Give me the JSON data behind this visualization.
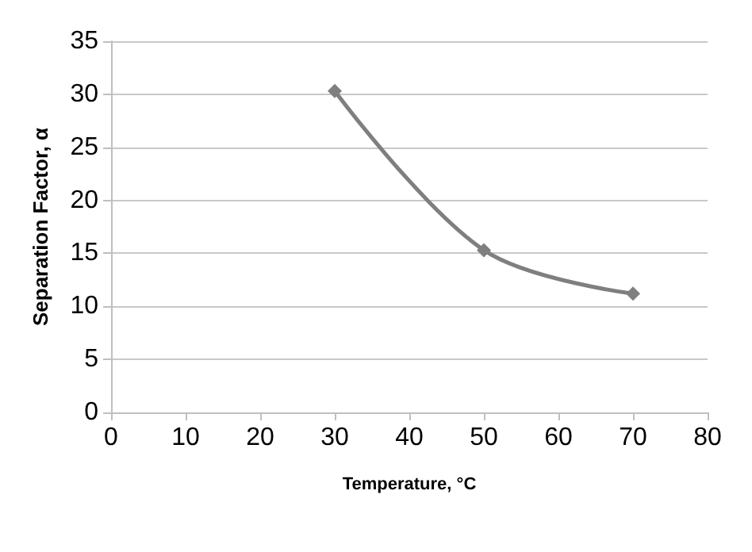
{
  "chart_data": {
    "type": "line",
    "xlabel": "Temperature, °C",
    "ylabel": "Separation Factor, α",
    "x": [
      30,
      50,
      70
    ],
    "series": [
      {
        "color": "#7f7f7f",
        "values": [
          30.3,
          15.3,
          11.2
        ]
      }
    ],
    "xlim": [
      0,
      80
    ],
    "xticks": [
      0,
      10,
      20,
      30,
      40,
      50,
      60,
      70,
      80
    ],
    "ylim": [
      0,
      35
    ],
    "yticks": [
      0,
      5,
      10,
      15,
      20,
      25,
      30,
      35
    ],
    "grid": "y",
    "marker": "diamond",
    "line_style": "solid"
  }
}
